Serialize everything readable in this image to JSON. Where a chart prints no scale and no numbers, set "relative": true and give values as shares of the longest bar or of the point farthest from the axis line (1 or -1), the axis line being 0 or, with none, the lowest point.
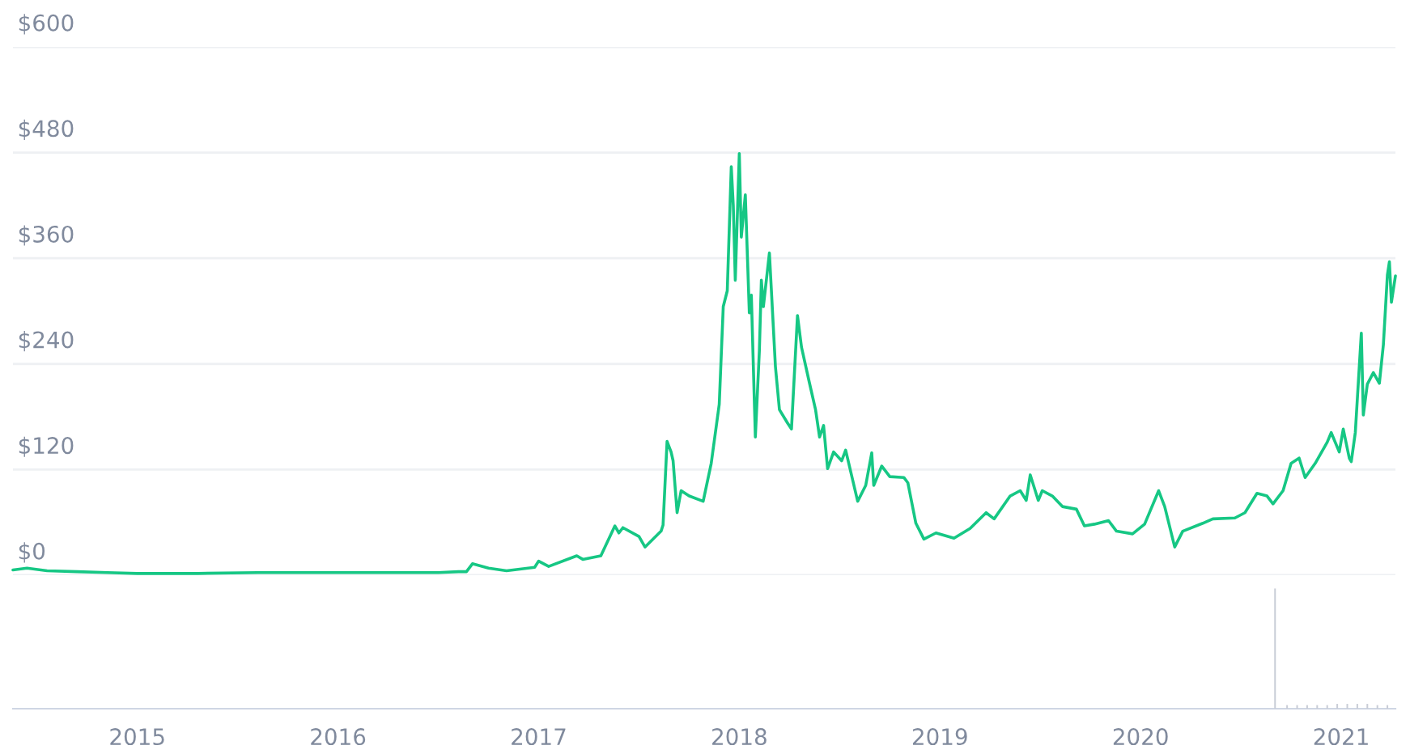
{
  "chart_data": [
    {
      "type": "line",
      "x": [
        2014.38,
        2014.45,
        2014.55,
        2014.7,
        2014.85,
        2015.0,
        2015.3,
        2015.6,
        2015.9,
        2016.2,
        2016.5,
        2016.6,
        2016.64,
        2016.67,
        2016.75,
        2016.84,
        2016.98,
        2017.0,
        2017.05,
        2017.19,
        2017.22,
        2017.31,
        2017.38,
        2017.4,
        2017.42,
        2017.5,
        2017.53,
        2017.61,
        2017.62,
        2017.64,
        2017.66,
        2017.67,
        2017.69,
        2017.71,
        2017.75,
        2017.82,
        2017.86,
        2017.9,
        2017.92,
        2017.94,
        2017.96,
        2017.97,
        2017.98,
        2018.0,
        2018.01,
        2018.03,
        2018.05,
        2018.06,
        2018.08,
        2018.1,
        2018.11,
        2018.12,
        2018.15,
        2018.18,
        2018.2,
        2018.24,
        2018.26,
        2018.29,
        2018.31,
        2018.35,
        2018.38,
        2018.4,
        2018.42,
        2018.44,
        2018.47,
        2018.51,
        2018.53,
        2018.59,
        2018.63,
        2018.66,
        2018.67,
        2018.71,
        2018.75,
        2018.82,
        2018.84,
        2018.88,
        2018.92,
        2018.98,
        2019.07,
        2019.15,
        2019.23,
        2019.27,
        2019.35,
        2019.4,
        2019.43,
        2019.45,
        2019.49,
        2019.51,
        2019.56,
        2019.61,
        2019.68,
        2019.72,
        2019.77,
        2019.84,
        2019.88,
        2019.96,
        2020.02,
        2020.09,
        2020.12,
        2020.17,
        2020.21,
        2020.31,
        2020.36,
        2020.47,
        2020.52,
        2020.58,
        2020.63,
        2020.66,
        2020.71,
        2020.75,
        2020.79,
        2020.82,
        2020.87,
        2020.93,
        2020.95,
        2020.99,
        2021.01,
        2021.04,
        2021.05,
        2021.07,
        2021.1,
        2021.11,
        2021.13,
        2021.16,
        2021.19,
        2021.21,
        2021.23,
        2021.24,
        2021.25,
        2021.27
      ],
      "series": [
        {
          "color": "#16c784",
          "values": [
            6,
            8,
            5,
            4,
            3,
            2,
            2,
            3,
            3,
            3,
            3,
            4,
            4,
            13,
            8,
            5,
            9,
            16,
            10,
            22,
            18,
            22,
            56,
            48,
            54,
            44,
            32,
            50,
            57,
            152,
            140,
            130,
            71,
            96,
            90,
            84,
            127,
            194,
            305,
            323,
            464,
            420,
            335,
            479,
            384,
            432,
            298,
            318,
            157,
            255,
            335,
            305,
            366,
            237,
            188,
            173,
            166,
            295,
            259,
            218,
            188,
            157,
            170,
            121,
            140,
            130,
            142,
            84,
            102,
            139,
            102,
            124,
            112,
            111,
            105,
            59,
            41,
            48,
            42,
            53,
            71,
            64,
            90,
            96,
            85,
            114,
            85,
            96,
            90,
            78,
            75,
            56,
            58,
            62,
            50,
            47,
            58,
            96,
            78,
            32,
            50,
            59,
            64,
            65,
            71,
            93,
            90,
            81,
            96,
            127,
            133,
            111,
            127,
            151,
            162,
            140,
            166,
            133,
            129,
            162,
            275,
            182,
            217,
            230,
            218,
            262,
            341,
            356,
            310,
            340
          ]
        }
      ],
      "xlim": [
        2014.38,
        2021.27
      ],
      "ylim": [
        0,
        600
      ],
      "yticks": [
        {
          "value": 0,
          "label": "$0"
        },
        {
          "value": 120,
          "label": "$120"
        },
        {
          "value": 240,
          "label": "$240"
        },
        {
          "value": 360,
          "label": "$360"
        },
        {
          "value": 480,
          "label": "$480"
        },
        {
          "value": 600,
          "label": "$600"
        }
      ],
      "grid": "y",
      "tick_labels": "y",
      "legend": false
    },
    {
      "type": "bar",
      "relative": true,
      "x": [
        2020.67,
        2020.73,
        2020.78,
        2020.83,
        2020.88,
        2020.93,
        2020.98,
        2021.03,
        2021.08,
        2021.13,
        2021.18,
        2021.23
      ],
      "series": [
        {
          "color": "#c8ccd6",
          "values": [
            1,
            0.03,
            0.03,
            0.03,
            0.03,
            0.03,
            0.04,
            0.04,
            0.04,
            0.04,
            0.03,
            0.03
          ]
        }
      ],
      "xlim": [
        2014.38,
        2021.27
      ],
      "xticks": [
        2015,
        2016,
        2017,
        2018,
        2019,
        2020,
        2021
      ],
      "tick_labels": "x",
      "grid": false,
      "legend": false
    }
  ]
}
